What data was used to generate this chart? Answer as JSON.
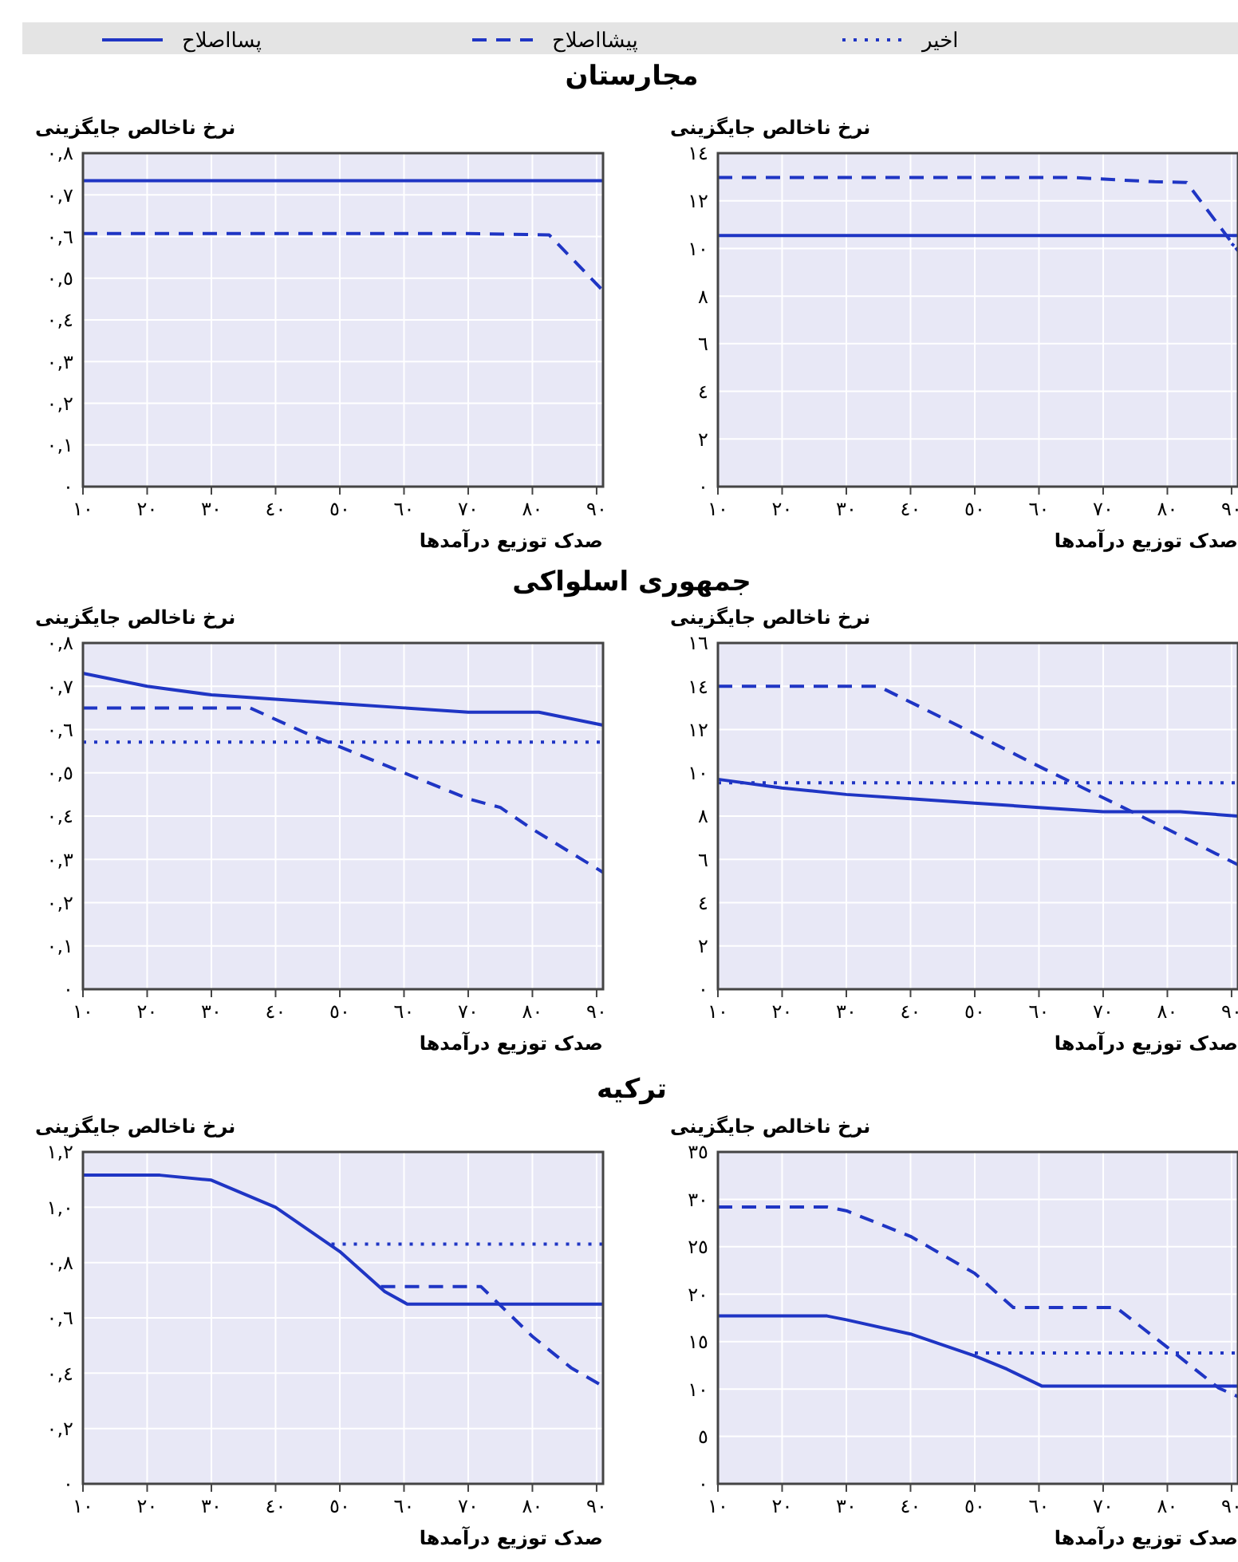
{
  "chart_data": [
    {
      "type": "line",
      "title": "مجارستان",
      "ylabel": "نرخ ناخالص جایگزینی",
      "xlabel": "صدک توزیع درآمدها",
      "grid": true,
      "xlim": [
        10,
        91
      ],
      "ylim": [
        0,
        0.8
      ],
      "xticks": [
        {
          "value": 10,
          "label": "١٠"
        },
        {
          "value": 20,
          "label": "٢٠"
        },
        {
          "value": 30,
          "label": "٣٠"
        },
        {
          "value": 40,
          "label": "٤٠"
        },
        {
          "value": 50,
          "label": "٥٠"
        },
        {
          "value": 60,
          "label": "٦٠"
        },
        {
          "value": 70,
          "label": "٧٠"
        },
        {
          "value": 80,
          "label": "٨٠"
        },
        {
          "value": 90,
          "label": "٩٠"
        }
      ],
      "yticks": [
        {
          "value": 0,
          "label": "٠"
        },
        {
          "value": 0.1,
          "label": "٠,١"
        },
        {
          "value": 0.2,
          "label": "٠,٢"
        },
        {
          "value": 0.3,
          "label": "٠,٣"
        },
        {
          "value": 0.4,
          "label": "٠,٤"
        },
        {
          "value": 0.5,
          "label": "٠,٥"
        },
        {
          "value": 0.6,
          "label": "٠,٦"
        },
        {
          "value": 0.7,
          "label": "٠,٧"
        },
        {
          "value": 0.8,
          "label": "٠,٨"
        }
      ],
      "series": [
        {
          "color": "#1f35c4",
          "line_style": "solid",
          "x": [
            10,
            91
          ],
          "values": [
            0.734,
            0.734
          ]
        },
        {
          "color": "#1f35c4",
          "line_style": "dashed",
          "x": [
            10,
            70,
            82.6,
            91
          ],
          "values": [
            0.607,
            0.607,
            0.604,
            0.47
          ]
        }
      ]
    },
    {
      "type": "line",
      "ylabel": "نرخ ناخالص جایگزینی",
      "xlabel": "صدک توزیع درآمدها",
      "grid": true,
      "xlim": [
        10,
        91
      ],
      "ylim": [
        0,
        14
      ],
      "xticks": [
        {
          "value": 10,
          "label": "١٠"
        },
        {
          "value": 20,
          "label": "٢٠"
        },
        {
          "value": 30,
          "label": "٣٠"
        },
        {
          "value": 40,
          "label": "٤٠"
        },
        {
          "value": 50,
          "label": "٥٠"
        },
        {
          "value": 60,
          "label": "٦٠"
        },
        {
          "value": 70,
          "label": "٧٠"
        },
        {
          "value": 80,
          "label": "٨٠"
        },
        {
          "value": 90,
          "label": "٩٠"
        }
      ],
      "yticks": [
        {
          "value": 0,
          "label": "٠"
        },
        {
          "value": 2,
          "label": "٢"
        },
        {
          "value": 4,
          "label": "٤"
        },
        {
          "value": 6,
          "label": "٦"
        },
        {
          "value": 8,
          "label": "٨"
        },
        {
          "value": 10,
          "label": "١٠"
        },
        {
          "value": 12,
          "label": "١٢"
        },
        {
          "value": 14,
          "label": "١٤"
        }
      ],
      "series": [
        {
          "color": "#1f35c4",
          "line_style": "solid",
          "x": [
            10,
            91
          ],
          "values": [
            10.54,
            10.54
          ]
        },
        {
          "color": "#1f35c4",
          "line_style": "dashed",
          "x": [
            10,
            65,
            78,
            83,
            91
          ],
          "values": [
            12.98,
            12.98,
            12.8,
            12.77,
            9.9
          ]
        },
        {
          "color": "#1f35c4",
          "line_style": "dotted",
          "x": [
            90,
            91
          ],
          "values": [
            10.2,
            9.98
          ]
        }
      ]
    },
    {
      "type": "line",
      "title": "جمهوری اسلواکی",
      "ylabel": "نرخ ناخالص جایگزینی",
      "xlabel": "صدک توزیع درآمدها",
      "legend": "top",
      "grid": true,
      "xlim": [
        10,
        91
      ],
      "ylim": [
        0,
        0.8
      ],
      "xticks": [
        {
          "value": 10,
          "label": "١٠"
        },
        {
          "value": 20,
          "label": "٢٠"
        },
        {
          "value": 30,
          "label": "٣٠"
        },
        {
          "value": 40,
          "label": "٤٠"
        },
        {
          "value": 50,
          "label": "٥٠"
        },
        {
          "value": 60,
          "label": "٦٠"
        },
        {
          "value": 70,
          "label": "٧٠"
        },
        {
          "value": 80,
          "label": "٨٠"
        },
        {
          "value": 90,
          "label": "٩٠"
        }
      ],
      "yticks": [
        {
          "value": 0,
          "label": "٠"
        },
        {
          "value": 0.1,
          "label": "٠,١"
        },
        {
          "value": 0.2,
          "label": "٠,٢"
        },
        {
          "value": 0.3,
          "label": "٠,٣"
        },
        {
          "value": 0.4,
          "label": "٠,٤"
        },
        {
          "value": 0.5,
          "label": "٠,٥"
        },
        {
          "value": 0.6,
          "label": "٠,٦"
        },
        {
          "value": 0.7,
          "label": "٠,٧"
        },
        {
          "value": 0.8,
          "label": "٠,٨"
        }
      ],
      "series": [
        {
          "name": "پسااصلاح",
          "color": "#1f35c4",
          "line_style": "solid",
          "x": [
            10,
            20,
            30,
            40,
            50,
            60,
            70,
            81,
            91
          ],
          "values": [
            0.73,
            0.7,
            0.68,
            0.67,
            0.66,
            0.65,
            0.64,
            0.64,
            0.61
          ]
        },
        {
          "name": "پیشااصلاح",
          "color": "#1f35c4",
          "line_style": "dashed",
          "x": [
            10,
            36,
            45,
            50,
            60,
            70,
            75,
            80,
            91
          ],
          "values": [
            0.65,
            0.65,
            0.59,
            0.56,
            0.5,
            0.44,
            0.42,
            0.37,
            0.27
          ]
        },
        {
          "name": "اخیر",
          "color": "#1f35c4",
          "line_style": "dotted",
          "x": [
            10,
            91
          ],
          "values": [
            0.571,
            0.571
          ]
        }
      ]
    },
    {
      "type": "line",
      "ylabel": "نرخ ناخالص جایگزینی",
      "xlabel": "صدک توزیع درآمدها",
      "grid": true,
      "xlim": [
        10,
        91
      ],
      "ylim": [
        0,
        16
      ],
      "xticks": [
        {
          "value": 10,
          "label": "١٠"
        },
        {
          "value": 20,
          "label": "٢٠"
        },
        {
          "value": 30,
          "label": "٣٠"
        },
        {
          "value": 40,
          "label": "٤٠"
        },
        {
          "value": 50,
          "label": "٥٠"
        },
        {
          "value": 60,
          "label": "٦٠"
        },
        {
          "value": 70,
          "label": "٧٠"
        },
        {
          "value": 80,
          "label": "٨٠"
        },
        {
          "value": 90,
          "label": "٩٠"
        }
      ],
      "yticks": [
        {
          "value": 0,
          "label": "٠"
        },
        {
          "value": 2,
          "label": "٢"
        },
        {
          "value": 4,
          "label": "٤"
        },
        {
          "value": 6,
          "label": "٦"
        },
        {
          "value": 8,
          "label": "٨"
        },
        {
          "value": 10,
          "label": "١٠"
        },
        {
          "value": 12,
          "label": "١٢"
        },
        {
          "value": 14,
          "label": "١٤"
        },
        {
          "value": 16,
          "label": "١٦"
        }
      ],
      "series": [
        {
          "color": "#1f35c4",
          "line_style": "solid",
          "x": [
            10,
            20,
            30,
            40,
            50,
            60,
            70,
            82,
            91
          ],
          "values": [
            9.7,
            9.3,
            9.0,
            8.8,
            8.6,
            8.4,
            8.2,
            8.2,
            8.0
          ]
        },
        {
          "color": "#1f35c4",
          "line_style": "dashed",
          "x": [
            10,
            35,
            50,
            60,
            70,
            80,
            91
          ],
          "values": [
            14,
            14,
            11.8,
            10.3,
            8.85,
            7.4,
            5.75
          ]
        },
        {
          "color": "#1f35c4",
          "line_style": "dotted",
          "x": [
            10,
            91
          ],
          "values": [
            9.54,
            9.54
          ]
        }
      ]
    },
    {
      "type": "line",
      "title": "ترکیه",
      "ylabel": "نرخ ناخالص جایگزینی",
      "xlabel": "صدک توزیع درآمدها",
      "grid": true,
      "xlim": [
        10,
        91
      ],
      "ylim": [
        0,
        1.2
      ],
      "xticks": [
        {
          "value": 10,
          "label": "١٠"
        },
        {
          "value": 20,
          "label": "٢٠"
        },
        {
          "value": 30,
          "label": "٣٠"
        },
        {
          "value": 40,
          "label": "٤٠"
        },
        {
          "value": 50,
          "label": "٥٠"
        },
        {
          "value": 60,
          "label": "٦٠"
        },
        {
          "value": 70,
          "label": "٧٠"
        },
        {
          "value": 80,
          "label": "٨٠"
        },
        {
          "value": 90,
          "label": "٩٠"
        }
      ],
      "yticks": [
        {
          "value": 0,
          "label": "٠"
        },
        {
          "value": 0.2,
          "label": "٠,٢"
        },
        {
          "value": 0.4,
          "label": "٠,٤"
        },
        {
          "value": 0.6,
          "label": "٠,٦"
        },
        {
          "value": 0.8,
          "label": "٠,٨"
        },
        {
          "value": 1.0,
          "label": "١,٠"
        },
        {
          "value": 1.2,
          "label": "١,٢"
        }
      ],
      "series": [
        {
          "color": "#1f35c4",
          "line_style": "solid",
          "x": [
            10,
            22,
            30,
            40,
            50,
            57,
            60.5,
            91
          ],
          "values": [
            1.116,
            1.116,
            1.098,
            1.0,
            0.84,
            0.695,
            0.65,
            0.65
          ]
        },
        {
          "color": "#1f35c4",
          "line_style": "dashed",
          "x": [
            56.4,
            72,
            80,
            86,
            91
          ],
          "values": [
            0.713,
            0.713,
            0.533,
            0.42,
            0.353
          ]
        },
        {
          "color": "#1f35c4",
          "line_style": "dotted",
          "x": [
            48.7,
            91
          ],
          "values": [
            0.867,
            0.867
          ]
        }
      ]
    },
    {
      "type": "line",
      "ylabel": "نرخ ناخالص جایگزینی",
      "xlabel": "صدک توزیع درآمدها",
      "grid": true,
      "xlim": [
        10,
        91
      ],
      "ylim": [
        0,
        35
      ],
      "xticks": [
        {
          "value": 10,
          "label": "١٠"
        },
        {
          "value": 20,
          "label": "٢٠"
        },
        {
          "value": 30,
          "label": "٣٠"
        },
        {
          "value": 40,
          "label": "٤٠"
        },
        {
          "value": 50,
          "label": "٥٠"
        },
        {
          "value": 60,
          "label": "٦٠"
        },
        {
          "value": 70,
          "label": "٧٠"
        },
        {
          "value": 80,
          "label": "٨٠"
        },
        {
          "value": 90,
          "label": "٩٠"
        }
      ],
      "yticks": [
        {
          "value": 0,
          "label": "٠"
        },
        {
          "value": 5,
          "label": "٥"
        },
        {
          "value": 10,
          "label": "١٠"
        },
        {
          "value": 15,
          "label": "١٥"
        },
        {
          "value": 20,
          "label": "٢٠"
        },
        {
          "value": 25,
          "label": "٢٥"
        },
        {
          "value": 30,
          "label": "٣٠"
        },
        {
          "value": 35,
          "label": "٣٥"
        }
      ],
      "series": [
        {
          "color": "#1f35c4",
          "line_style": "solid",
          "x": [
            10,
            27,
            30,
            40,
            50,
            55,
            60.5,
            91
          ],
          "values": [
            17.7,
            17.7,
            17.3,
            15.8,
            13.5,
            12.1,
            10.3,
            10.3
          ]
        },
        {
          "color": "#1f35c4",
          "line_style": "dashed",
          "x": [
            10,
            27,
            30,
            40,
            50,
            56,
            72,
            80,
            88,
            91
          ],
          "values": [
            29.2,
            29.2,
            28.8,
            26.1,
            22.2,
            18.6,
            18.6,
            14.4,
            10.1,
            9.2
          ]
        },
        {
          "color": "#1f35c4",
          "line_style": "dotted",
          "x": [
            50,
            91
          ],
          "values": [
            13.8,
            13.8
          ]
        }
      ]
    }
  ]
}
